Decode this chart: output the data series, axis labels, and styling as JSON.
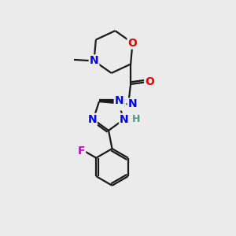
{
  "background_color": "#ebebeb",
  "bond_color": "#1a1a1a",
  "atom_colors": {
    "N": "#0000e0",
    "O": "#e00000",
    "F": "#cc00cc",
    "H": "#4a9a8a",
    "C": "#1a1a1a"
  },
  "font_size": 10,
  "figsize": [
    3.0,
    3.0
  ],
  "dpi": 100
}
